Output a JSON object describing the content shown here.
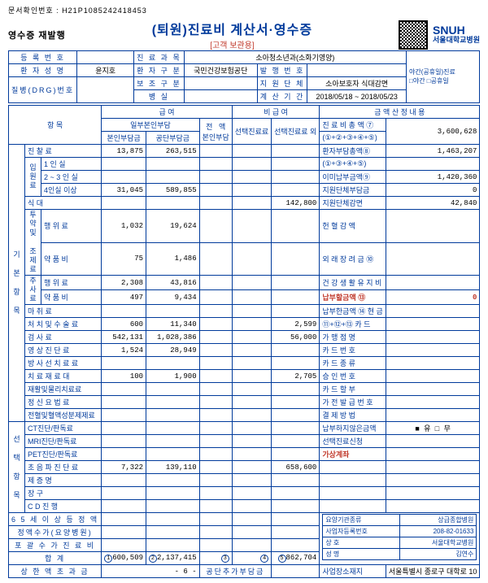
{
  "header": {
    "docNo": "문서확인번호 : H21P1085242418453",
    "title": "(퇴원)진료비 계산서·영수증",
    "subtitle": "[고객 보관용]",
    "reissue": "영수증 재발행",
    "snuh": "SNUH",
    "snuhSub": "서울대학교병원"
  },
  "info": {
    "regNoL": "등 록 번 호",
    "regNo": "",
    "nameL": "환 자 성 명",
    "name": "윤지호",
    "drgL": "질병(DRG)번호",
    "drg": "",
    "subjL": "진 료 과 목",
    "subj": "소아청소년과(소화기영양)",
    "patClsL": "환 자 구 분",
    "patCls": "국민건강보험공단",
    "insClsL": "보 조 구 분",
    "insCls": "",
    "roomL": "병          실",
    "room": "",
    "issNoL": "발 행 번 호",
    "issNo": "",
    "aidL": "지 원 단 체",
    "aid": "소아보호자 식대감면",
    "periodL": "계 산 기 간",
    "period": "2018/05/18 ~ 2018/05/23",
    "nightL1": "야간(공휴일)진료",
    "nightL2": "□야간   □공휴일"
  },
  "cols": {
    "item": "항    목",
    "ins": "급    여",
    "insPart": "일부본인부담",
    "self": "본인부담금",
    "pub": "공단부담금",
    "fullSelf": "전   액\n본인부담",
    "nonIns": "비 급 여",
    "sel1": "선택진료료",
    "sel2": "선택진료료 외",
    "calc": "금 액 산 정 내 용"
  },
  "rows": [
    {
      "l": "진     찰     료",
      "a": "13,875",
      "b": "263,515",
      "c": "",
      "d": "",
      "e": ""
    },
    {
      "l": "1  인  실",
      "a": "",
      "b": "",
      "c": "",
      "d": "",
      "e": ""
    },
    {
      "l": "2 ~ 3 인  실",
      "a": "",
      "b": "",
      "c": "",
      "d": "",
      "e": ""
    },
    {
      "l": "4인실 이상",
      "a": "31,045",
      "b": "589,855",
      "c": "",
      "d": "",
      "e": ""
    },
    {
      "l": "식             대",
      "a": "",
      "b": "",
      "c": "",
      "d": "",
      "e": "142,800"
    },
    {
      "l": "행  위  료",
      "a": "1,032",
      "b": "19,624",
      "c": "",
      "d": "",
      "e": ""
    },
    {
      "l": "약  품  비",
      "a": "75",
      "b": "1,486",
      "c": "",
      "d": "",
      "e": ""
    },
    {
      "l": "행  위  료",
      "a": "2,308",
      "b": "43,816",
      "c": "",
      "d": "",
      "e": ""
    },
    {
      "l": "약  품  비",
      "a": "497",
      "b": "9,434",
      "c": "",
      "d": "",
      "e": ""
    },
    {
      "l": "마      취     료",
      "a": "",
      "b": "",
      "c": "",
      "d": "",
      "e": ""
    },
    {
      "l": "처 치 및 수 술 료",
      "a": "600",
      "b": "11,340",
      "c": "",
      "d": "",
      "e": "2,599"
    },
    {
      "l": "검      사     료",
      "a": "542,131",
      "b": "1,028,386",
      "c": "",
      "d": "",
      "e": "56,000"
    },
    {
      "l": "영 상 진 단 료",
      "a": "1,524",
      "b": "28,949",
      "c": "",
      "d": "",
      "e": ""
    },
    {
      "l": "방 사 선 치 료 료",
      "a": "",
      "b": "",
      "c": "",
      "d": "",
      "e": ""
    },
    {
      "l": "치  료  재  료  대",
      "a": "100",
      "b": "1,900",
      "c": "",
      "d": "",
      "e": "2,705"
    },
    {
      "l": "재활및물리치료료",
      "a": "",
      "b": "",
      "c": "",
      "d": "",
      "e": ""
    },
    {
      "l": "정  신  요  법  료",
      "a": "",
      "b": "",
      "c": "",
      "d": "",
      "e": ""
    },
    {
      "l": "전혈및혈액성분제제료",
      "a": "",
      "b": "",
      "c": "",
      "d": "",
      "e": ""
    },
    {
      "l": "CT진단/판독료",
      "a": "",
      "b": "",
      "c": "",
      "d": "",
      "e": ""
    },
    {
      "l": "MRI진단/판독료",
      "a": "",
      "b": "",
      "c": "",
      "d": "",
      "e": ""
    },
    {
      "l": "PET진단/판독료",
      "a": "",
      "b": "",
      "c": "",
      "d": "",
      "e": ""
    },
    {
      "l": "초 음 파 진 단 료",
      "a": "7,322",
      "b": "139,110",
      "c": "",
      "d": "",
      "e": "658,600"
    },
    {
      "l": "제      증     명",
      "a": "",
      "b": "",
      "c": "",
      "d": "",
      "e": ""
    },
    {
      "l": "장             구",
      "a": "",
      "b": "",
      "c": "",
      "d": "",
      "e": ""
    },
    {
      "l": "C    D    진   행",
      "a": "",
      "b": "",
      "c": "",
      "d": "",
      "e": ""
    }
  ],
  "sideLabels": {
    "ip": "입원료",
    "tu": "투약및\n조제료",
    "ju": "주사료",
    "gibon": "기 본 항 목",
    "sel": "선 택 항 목"
  },
  "totals": {
    "l65": "6 5 세 이 상 등 정 액",
    "ljg": "정액수가(요양병원)",
    "lpo": "포 괄 수 가 진 료 비",
    "lhap": "합                 계",
    "hap1": "600,509",
    "hap2": "2,137,415",
    "hap3": "",
    "hap4": "",
    "hap5": "862,704",
    "lsang": "상 한 액 초 과 금",
    "ldu": "공단추가부담금"
  },
  "rcalc": [
    {
      "l": "진 료 비 총 액 ⑦",
      "v": "3,600,628"
    },
    {
      "l": "(①+②+③+④+⑤)",
      "v": ""
    },
    {
      "l": "환자부담총액⑧",
      "v": "1,463,207"
    },
    {
      "l": "(①+③+④+⑤)",
      "v": ""
    },
    {
      "l": "이미납부금액⑨",
      "v": "1,420,360"
    },
    {
      "l": "지원단체부담금",
      "v": "0"
    },
    {
      "l": "지원단체감면",
      "v": "42,840"
    },
    {
      "l": "헌 혈 감 액",
      "v": ""
    },
    {
      "l": "외 래 장 려 금 ⑩",
      "v": ""
    },
    {
      "l": "건 강 생 활 유 지 비",
      "v": ""
    },
    {
      "l": "납부할금액 ⑬",
      "v": "0",
      "red": true
    },
    {
      "l": "납부한금액 ⑭ 현 금",
      "v": ""
    },
    {
      "l": "⑪+⑫+⑬ 카 드",
      "v": ""
    },
    {
      "l": "가 맹 점 명",
      "v": ""
    },
    {
      "l": "카 드 번 호",
      "v": ""
    },
    {
      "l": "카   드   종   류",
      "v": ""
    },
    {
      "l": "승  인  번  호",
      "v": ""
    },
    {
      "l": "카 드 할 부",
      "v": ""
    },
    {
      "l": "가 전 발 급 번 호",
      "v": ""
    },
    {
      "l": "결  제  방  법",
      "v": ""
    },
    {
      "l": "납부하지않은금액",
      "v": "",
      "box": "■ 유   □ 무"
    },
    {
      "l": "선택진료신청",
      "v": ""
    },
    {
      "l": "가상계좌",
      "v": "",
      "red": true
    }
  ],
  "footer": {
    "l1": "요양기관종류",
    "v1": "상급종합병원",
    "l2": "사업자등록번호",
    "v2": "208-82-01633",
    "l3": "상         호",
    "v3": "서울대학교병원",
    "l4": "성         명",
    "v4": "김연수",
    "l5": "사업장소재지",
    "v5": "서울특별시 종로구 대학로 10"
  }
}
